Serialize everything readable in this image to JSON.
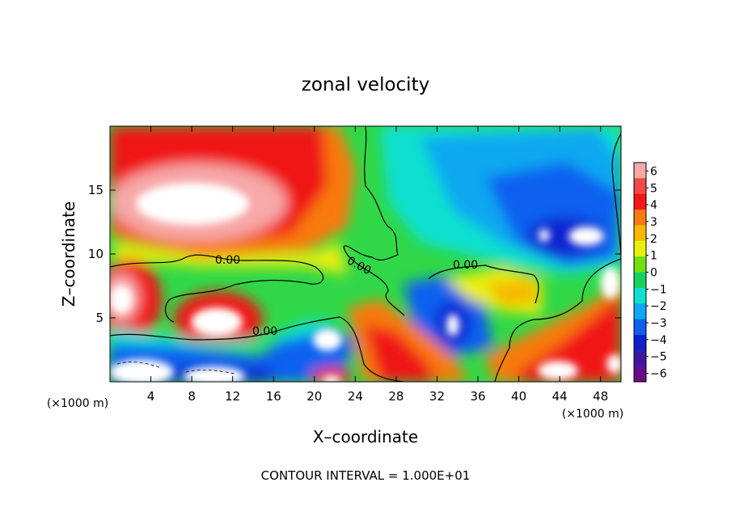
{
  "chart_data": {
    "type": "heatmap",
    "title": "zonal velocity",
    "xlabel": "X–coordinate",
    "ylabel": "Z–coordinate",
    "x_unit_left": "(×1000 m)",
    "x_unit_right": "(×1000 m)",
    "footer": "CONTOUR INTERVAL = 1.000E+01",
    "xlim": [
      0,
      50
    ],
    "ylim": [
      0,
      20
    ],
    "x_ticks": [
      4,
      8,
      12,
      16,
      20,
      24,
      28,
      32,
      36,
      40,
      44,
      48
    ],
    "x_tick_labels": [
      "4",
      "8",
      "12",
      "16",
      "20",
      "24",
      "28",
      "32",
      "36",
      "40",
      "44",
      "48"
    ],
    "y_ticks": [
      5,
      10,
      15
    ],
    "y_tick_labels": [
      "5",
      "10",
      "15"
    ],
    "colorbar": {
      "levels": [
        6,
        5,
        4,
        3,
        2,
        1,
        0,
        -1,
        -2,
        -3,
        -4,
        -5,
        -6
      ],
      "labels": [
        "6",
        "5",
        "4",
        "3",
        "2",
        "1",
        "0",
        "−1",
        "−2",
        "−3",
        "−4",
        "−5",
        "−6"
      ],
      "colors": [
        "#f7a8a8",
        "#f24848",
        "#f01818",
        "#f87a10",
        "#f8b800",
        "#e8f010",
        "#70e010",
        "#18d060",
        "#10e0d0",
        "#10a8f0",
        "#1060f0",
        "#1020d0",
        "#4018a0",
        "#6a0a8a"
      ]
    },
    "contour_labels": [
      "0.00",
      "0.00",
      "0.00",
      "0.00"
    ]
  }
}
